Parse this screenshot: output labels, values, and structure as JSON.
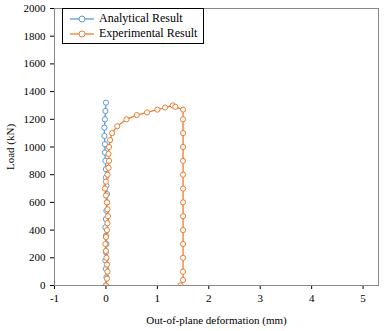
{
  "chart_data": {
    "type": "line",
    "x_label": "Out-of-plane deformation (mm)",
    "y_label": "Load (kN)",
    "xlim": [
      -1,
      5.3
    ],
    "xticks": [
      -1,
      0,
      1,
      2,
      3,
      4,
      5
    ],
    "ylim": [
      0,
      2000
    ],
    "yticks": [
      0,
      200,
      400,
      600,
      800,
      1000,
      1200,
      1400,
      1600,
      1800,
      2000
    ],
    "grid": false,
    "legend": "top-left",
    "series": [
      {
        "name": "Analytical Result",
        "color": "#5b9bd5",
        "marker": "circle",
        "line_style": "solid",
        "x": [
          0,
          0.01,
          0,
          -0.01,
          0,
          0.01,
          0,
          -0.01,
          0,
          0.01,
          0.02,
          0.02,
          0.01,
          0,
          0,
          -0.01,
          -0.02,
          -0.02,
          -0.03,
          -0.03,
          -0.02,
          -0.01,
          0
        ],
        "values": [
          0,
          60,
          120,
          180,
          240,
          300,
          360,
          420,
          480,
          540,
          600,
          660,
          720,
          780,
          840,
          900,
          960,
          1020,
          1080,
          1140,
          1200,
          1260,
          1320
        ]
      },
      {
        "name": "Experimental Result",
        "color": "#ed7d31",
        "marker": "circle",
        "line_style": "solid",
        "x": [
          0,
          0.02,
          0.03,
          0.02,
          0.01,
          0,
          -0.01,
          0,
          0.02,
          0.03,
          0.04,
          0.03,
          0.02,
          0,
          -0.02,
          0,
          0.03,
          0.05,
          0.06,
          0.05,
          0.06,
          0.08,
          0.12,
          0.22,
          0.4,
          0.6,
          0.8,
          1.0,
          1.15,
          1.3,
          1.35,
          1.5,
          1.5,
          1.5,
          1.5,
          1.5,
          1.5,
          1.5,
          1.5,
          1.5,
          1.5,
          1.5,
          1.5,
          1.5,
          1.5,
          1.45
        ],
        "values": [
          0,
          50,
          100,
          150,
          200,
          250,
          300,
          350,
          400,
          450,
          500,
          550,
          600,
          650,
          700,
          750,
          800,
          850,
          900,
          950,
          1000,
          1050,
          1100,
          1150,
          1200,
          1230,
          1250,
          1270,
          1285,
          1300,
          1290,
          1270,
          1200,
          1100,
          1000,
          900,
          800,
          700,
          600,
          500,
          400,
          300,
          200,
          100,
          40,
          0
        ]
      }
    ]
  }
}
